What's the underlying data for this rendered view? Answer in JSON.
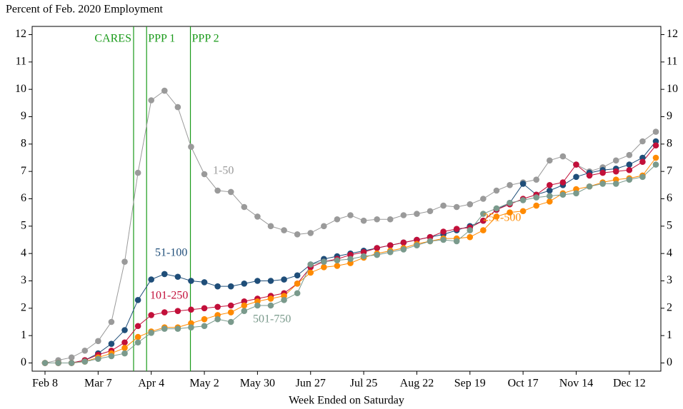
{
  "chart_data": {
    "type": "line",
    "y_label": "Percent of Feb. 2020 Employment",
    "x_label": "Week Ended on Saturday",
    "categories": [
      "Feb 8",
      null,
      null,
      null,
      "Mar 7",
      null,
      null,
      null,
      "Apr 4",
      null,
      null,
      null,
      "May 2",
      null,
      null,
      null,
      "May 30",
      null,
      null,
      null,
      "Jun 27",
      null,
      null,
      null,
      "Jul 25",
      null,
      null,
      null,
      "Aug 22",
      null,
      null,
      null,
      "Sep 19",
      null,
      null,
      null,
      "Oct 17",
      null,
      null,
      null,
      "Nov 14",
      null,
      null,
      null,
      "Dec 12",
      null,
      null
    ],
    "ylim": [
      -0.3,
      12.3
    ],
    "yticks": [
      0,
      1,
      2,
      3,
      4,
      5,
      6,
      7,
      8,
      9,
      10,
      11,
      12
    ],
    "events": [
      {
        "label": "CARES",
        "x": 6.67,
        "color": "#1a9a1a"
      },
      {
        "label": "PPP 1",
        "x": 7.65,
        "color": "#1a9a1a"
      },
      {
        "label": "PPP 2",
        "x": 10.95,
        "color": "#1a9a1a"
      }
    ],
    "series": [
      {
        "name": "1-50",
        "color": "#9a9a9a",
        "values": [
          0,
          0.1,
          0.2,
          0.45,
          0.8,
          1.5,
          3.7,
          6.95,
          9.6,
          9.95,
          9.35,
          7.9,
          6.9,
          6.3,
          6.25,
          5.7,
          5.35,
          5.0,
          4.85,
          4.7,
          4.75,
          5.0,
          5.25,
          5.4,
          5.2,
          5.25,
          5.25,
          5.4,
          5.45,
          5.55,
          5.75,
          5.7,
          5.8,
          6.0,
          6.3,
          6.5,
          6.6,
          6.7,
          7.4,
          7.55,
          7.25,
          7.0,
          7.15,
          7.4,
          7.6,
          8.1,
          8.45
        ]
      },
      {
        "name": "51-100",
        "color": "#1f4e79",
        "values": [
          0,
          0,
          0,
          0.1,
          0.35,
          0.7,
          1.2,
          2.3,
          3.05,
          3.25,
          3.15,
          3.0,
          2.95,
          2.8,
          2.8,
          2.9,
          3.0,
          3.0,
          3.05,
          3.2,
          3.6,
          3.8,
          3.9,
          4.0,
          4.1,
          4.2,
          4.3,
          4.4,
          4.5,
          4.6,
          4.7,
          4.85,
          5.0,
          5.2,
          5.6,
          5.85,
          6.55,
          6.15,
          6.3,
          6.5,
          6.8,
          6.95,
          7.05,
          7.1,
          7.25,
          7.5,
          8.1
        ]
      },
      {
        "name": "101-250",
        "color": "#c2103a",
        "values": [
          0,
          0,
          0,
          0.1,
          0.3,
          0.45,
          0.75,
          1.35,
          1.75,
          1.85,
          1.9,
          1.95,
          2.0,
          2.05,
          2.1,
          2.25,
          2.35,
          2.45,
          2.55,
          2.9,
          3.5,
          3.7,
          3.8,
          3.95,
          4.05,
          4.2,
          4.3,
          4.4,
          4.5,
          4.6,
          4.8,
          4.9,
          4.95,
          5.2,
          5.6,
          5.8,
          6.0,
          6.15,
          6.5,
          6.6,
          7.25,
          6.85,
          6.95,
          7.0,
          7.05,
          7.35,
          7.95
        ]
      },
      {
        "name": "251-500",
        "color": "#ff8a00",
        "values": [
          0,
          0,
          0,
          0.05,
          0.2,
          0.35,
          0.55,
          0.95,
          1.15,
          1.3,
          1.3,
          1.45,
          1.6,
          1.75,
          1.85,
          2.1,
          2.25,
          2.35,
          2.45,
          2.9,
          3.3,
          3.5,
          3.55,
          3.65,
          3.85,
          4.0,
          4.1,
          4.2,
          4.35,
          4.45,
          4.55,
          4.55,
          4.6,
          4.85,
          5.35,
          5.5,
          5.55,
          5.75,
          5.9,
          6.2,
          6.35,
          6.45,
          6.6,
          6.7,
          6.75,
          6.85,
          7.5
        ]
      },
      {
        "name": "501-750",
        "color": "#7a9a8c",
        "values": [
          0,
          0,
          0,
          0.05,
          0.15,
          0.25,
          0.35,
          0.75,
          1.1,
          1.25,
          1.25,
          1.3,
          1.35,
          1.6,
          1.5,
          1.9,
          2.1,
          2.1,
          2.3,
          2.55,
          3.6,
          3.7,
          3.75,
          3.8,
          3.9,
          3.95,
          4.05,
          4.15,
          4.3,
          4.45,
          4.5,
          4.45,
          4.85,
          5.45,
          5.65,
          5.85,
          5.95,
          6.05,
          6.1,
          6.15,
          6.2,
          6.45,
          6.55,
          6.55,
          6.7,
          6.8,
          7.25
        ]
      }
    ]
  }
}
